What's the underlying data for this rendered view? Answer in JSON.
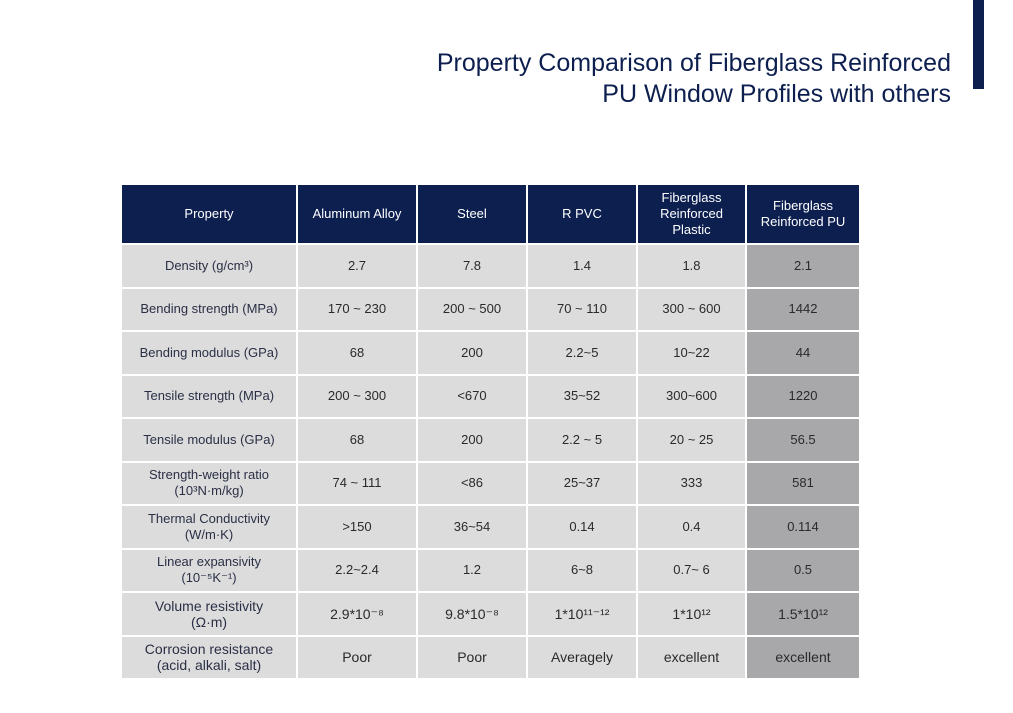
{
  "header": {
    "title_line1": "Property Comparison of  Fiberglass Reinforced",
    "title_line2": "PU Window Profiles with others",
    "accent_color": "#0c1f4f"
  },
  "table": {
    "columns": [
      "Property",
      "Aluminum Alloy",
      "Steel",
      "R PVC",
      "Fiberglass Reinforced Plastic",
      "Fiberglass Reinforced PU"
    ],
    "rows": [
      {
        "property": "Density (g/cm³)",
        "values": [
          "2.7",
          "7.8",
          "1.4",
          "1.8",
          "2.1"
        ]
      },
      {
        "property": "Bending strength (MPa)",
        "values": [
          "170 ~ 230",
          "200 ~ 500",
          "70 ~ 110",
          "300 ~ 600",
          "1442"
        ]
      },
      {
        "property": "Bending modulus (GPa)",
        "values": [
          "68",
          "200",
          "2.2~5",
          "10~22",
          "44"
        ]
      },
      {
        "property": "Tensile strength (MPa)",
        "values": [
          "200 ~ 300",
          "<670",
          "35~52",
          "300~600",
          "1220"
        ]
      },
      {
        "property": "Tensile modulus (GPa)",
        "values": [
          "68",
          "200",
          "2.2 ~ 5",
          "20 ~ 25",
          "56.5"
        ]
      },
      {
        "property": "Strength-weight ratio",
        "property_sub": "(10³N·m/kg)",
        "values": [
          "74 ~ 111",
          "<86",
          "25~37",
          "333",
          "581"
        ]
      },
      {
        "property": "Thermal Conductivity",
        "property_sub": "(W/m·K)",
        "values": [
          ">150",
          "36~54",
          "0.14",
          "0.4",
          "0.114"
        ]
      },
      {
        "property": "Linear expansivity",
        "property_sub": "(10⁻⁵K⁻¹)",
        "values": [
          "2.2~2.4",
          "1.2",
          "6~8",
          "0.7~ 6",
          "0.5"
        ]
      },
      {
        "property": "Volume resistivity",
        "property_sub": "(Ω·m)",
        "values": [
          "2.9*10⁻⁸",
          "9.8*10⁻⁸",
          "1*10¹¹⁻¹²",
          "1*10¹²",
          "1.5*10¹²"
        ]
      },
      {
        "property": "Corrosion resistance",
        "property_sub": "(acid, alkali, salt)",
        "values": [
          "Poor",
          "Poor",
          "Averagely",
          "excellent",
          "excellent"
        ]
      }
    ]
  }
}
